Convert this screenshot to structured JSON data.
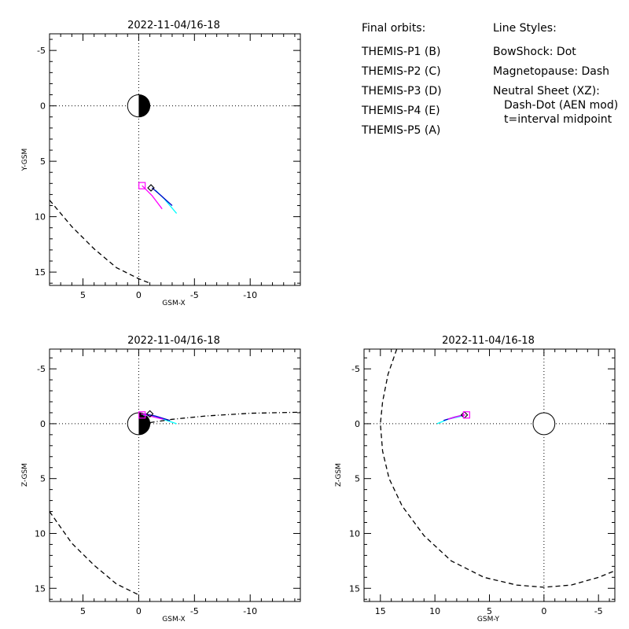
{
  "chart_data": [
    {
      "type": "line",
      "title": "2022-11-04/16-18",
      "xlabel": "GSM-X",
      "ylabel": "Y-GSM",
      "xlim": [
        8,
        -14.5
      ],
      "ylim": [
        -6.5,
        16.2
      ],
      "xticks": [
        5,
        0,
        -5,
        -10
      ],
      "xtick_labels": [
        "5",
        "0",
        "-5",
        "-10"
      ],
      "yticks": [
        -5,
        0,
        5,
        10,
        15
      ],
      "ytick_labels": [
        "-5",
        "0",
        "5",
        "10",
        "15"
      ],
      "earth": {
        "center": [
          0,
          0
        ],
        "radius": 1,
        "night_half": "negative-x"
      },
      "series": [
        {
          "name": "THEMIS-P3 (D)",
          "color": "#00ffff",
          "style": "solid",
          "points": [
            [
              -1.5,
              7.6
            ],
            [
              -2.3,
              8.4
            ],
            [
              -3.4,
              9.7
            ]
          ]
        },
        {
          "name": "THEMIS-P4 (E)",
          "color": "#0000c8",
          "style": "solid",
          "points": [
            [
              -1.2,
              7.4
            ],
            [
              -2.0,
              8.1
            ],
            [
              -3.0,
              9.0
            ]
          ]
        },
        {
          "name": "THEMIS-P5 (A)",
          "color": "#ff00ff",
          "style": "solid",
          "points": [
            [
              -0.3,
              7.2
            ],
            [
              -1.2,
              8.1
            ],
            [
              -2.1,
              9.3
            ]
          ]
        },
        {
          "name": "Magnetopause",
          "color": "#000000",
          "style": "dash",
          "points": [
            [
              8,
              8.5
            ],
            [
              6,
              10.9
            ],
            [
              4,
              12.9
            ],
            [
              2,
              14.6
            ],
            [
              0,
              15.6
            ],
            [
              -1,
              16.0
            ]
          ]
        }
      ],
      "markers": [
        {
          "shape": "diamond",
          "color": "#000000",
          "at": [
            -1.1,
            7.4
          ]
        },
        {
          "shape": "square",
          "color": "#ff00ff",
          "at": [
            -0.3,
            7.2
          ]
        }
      ]
    },
    {
      "type": "line",
      "title": "2022-11-04/16-18",
      "xlabel": "GSM-X",
      "ylabel": "Z-GSM",
      "xlim": [
        8,
        -14.5
      ],
      "ylim": [
        -6.8,
        16.2
      ],
      "xticks": [
        5,
        0,
        -5,
        -10
      ],
      "xtick_labels": [
        "5",
        "0",
        "-5",
        "-10"
      ],
      "yticks": [
        -5,
        0,
        5,
        10,
        15
      ],
      "ytick_labels": [
        "-5",
        "0",
        "5",
        "10",
        "15"
      ],
      "earth": {
        "center": [
          0,
          0
        ],
        "radius": 1,
        "night_half": "negative-x"
      },
      "series": [
        {
          "name": "THEMIS-P3 (D)",
          "color": "#00ffff",
          "style": "solid",
          "points": [
            [
              -0.4,
              -0.8
            ],
            [
              -1.6,
              -0.6
            ],
            [
              -3.4,
              0.0
            ]
          ]
        },
        {
          "name": "THEMIS-P4 (E)",
          "color": "#0000c8",
          "style": "solid",
          "points": [
            [
              -0.5,
              -0.9
            ],
            [
              -1.5,
              -0.7
            ],
            [
              -2.8,
              -0.3
            ]
          ]
        },
        {
          "name": "THEMIS-P5 (A)",
          "color": "#ff00ff",
          "style": "solid",
          "points": [
            [
              -0.2,
              -0.9
            ],
            [
              -1.0,
              -0.7
            ],
            [
              -2.2,
              -0.4
            ]
          ]
        },
        {
          "name": "Neutral Sheet (XZ)",
          "color": "#000000",
          "style": "dashdot",
          "points": [
            [
              -1.0,
              -0.1
            ],
            [
              -3.0,
              -0.4
            ],
            [
              -6.0,
              -0.7
            ],
            [
              -10.0,
              -0.95
            ],
            [
              -14.5,
              -1.05
            ]
          ]
        },
        {
          "name": "Magnetopause",
          "color": "#000000",
          "style": "dash",
          "points": [
            [
              8,
              8.0
            ],
            [
              6,
              10.9
            ],
            [
              4,
              12.9
            ],
            [
              2,
              14.6
            ],
            [
              0,
              15.6
            ]
          ]
        }
      ],
      "markers": [
        {
          "shape": "diamond",
          "color": "#000000",
          "at": [
            -1.0,
            -0.9
          ]
        },
        {
          "shape": "square",
          "color": "#ff00ff",
          "at": [
            -0.3,
            -0.8
          ]
        }
      ]
    },
    {
      "type": "line",
      "title": "2022-11-04/16-18",
      "xlabel": "GSM-Y",
      "ylabel": "Z-GSM",
      "xlim": [
        16.5,
        -6.5
      ],
      "ylim": [
        -6.8,
        16.2
      ],
      "xticks": [
        15,
        10,
        5,
        0,
        -5
      ],
      "xtick_labels": [
        "15",
        "10",
        "5",
        "0",
        "-5"
      ],
      "yticks": [
        -5,
        0,
        5,
        10,
        15
      ],
      "ytick_labels": [
        "-5",
        "0",
        "5",
        "10",
        "15"
      ],
      "earth": {
        "center": [
          0,
          0
        ],
        "radius": 1,
        "night_half": "none"
      },
      "series": [
        {
          "name": "THEMIS-P3 (D)",
          "color": "#00ffff",
          "style": "solid",
          "points": [
            [
              9.8,
              0.0
            ],
            [
              8.8,
              -0.4
            ],
            [
              7.5,
              -0.7
            ]
          ]
        },
        {
          "name": "THEMIS-P4 (E)",
          "color": "#0000c8",
          "style": "solid",
          "points": [
            [
              9.2,
              -0.3
            ],
            [
              8.2,
              -0.6
            ],
            [
              7.4,
              -0.8
            ]
          ]
        },
        {
          "name": "THEMIS-P5 (A)",
          "color": "#ff00ff",
          "style": "solid",
          "points": [
            [
              8.8,
              -0.4
            ],
            [
              7.8,
              -0.7
            ],
            [
              7.2,
              -0.8
            ]
          ]
        },
        {
          "name": "Magnetopause",
          "color": "#000000",
          "style": "dash",
          "points": [
            [
              13.5,
              -6.8
            ],
            [
              14.3,
              -4.5
            ],
            [
              14.8,
              -2.0
            ],
            [
              15.0,
              0.0
            ],
            [
              14.8,
              2.5
            ],
            [
              14.2,
              5.0
            ],
            [
              13.0,
              7.5
            ],
            [
              11.0,
              10.2
            ],
            [
              8.5,
              12.5
            ],
            [
              5.5,
              14.0
            ],
            [
              2.5,
              14.7
            ],
            [
              0.0,
              14.9
            ],
            [
              -2.5,
              14.7
            ],
            [
              -5.0,
              14.0
            ],
            [
              -6.5,
              13.4
            ]
          ]
        }
      ],
      "markers": [
        {
          "shape": "diamond",
          "color": "#000000",
          "at": [
            7.3,
            -0.8
          ]
        },
        {
          "shape": "square",
          "color": "#ff00ff",
          "at": [
            7.1,
            -0.8
          ]
        }
      ]
    }
  ],
  "legend": {
    "heading": "Final orbits:",
    "items": [
      {
        "label": "THEMIS-P1 (B)",
        "color": "#ff0000"
      },
      {
        "label": "THEMIS-P2 (C)",
        "color": "#00ff00"
      },
      {
        "label": "THEMIS-P3 (D)",
        "color": "#00ffff"
      },
      {
        "label": "THEMIS-P4 (E)",
        "color": "#0000c8"
      },
      {
        "label": "THEMIS-P5 (A)",
        "color": "#ff00ff"
      }
    ]
  },
  "line_styles": {
    "heading": "Line Styles:",
    "lines": [
      "BowShock: Dot",
      "Magnetopause: Dash",
      "Neutral Sheet (XZ):",
      "Dash-Dot (AEN mod)",
      "t=interval midpoint"
    ]
  }
}
